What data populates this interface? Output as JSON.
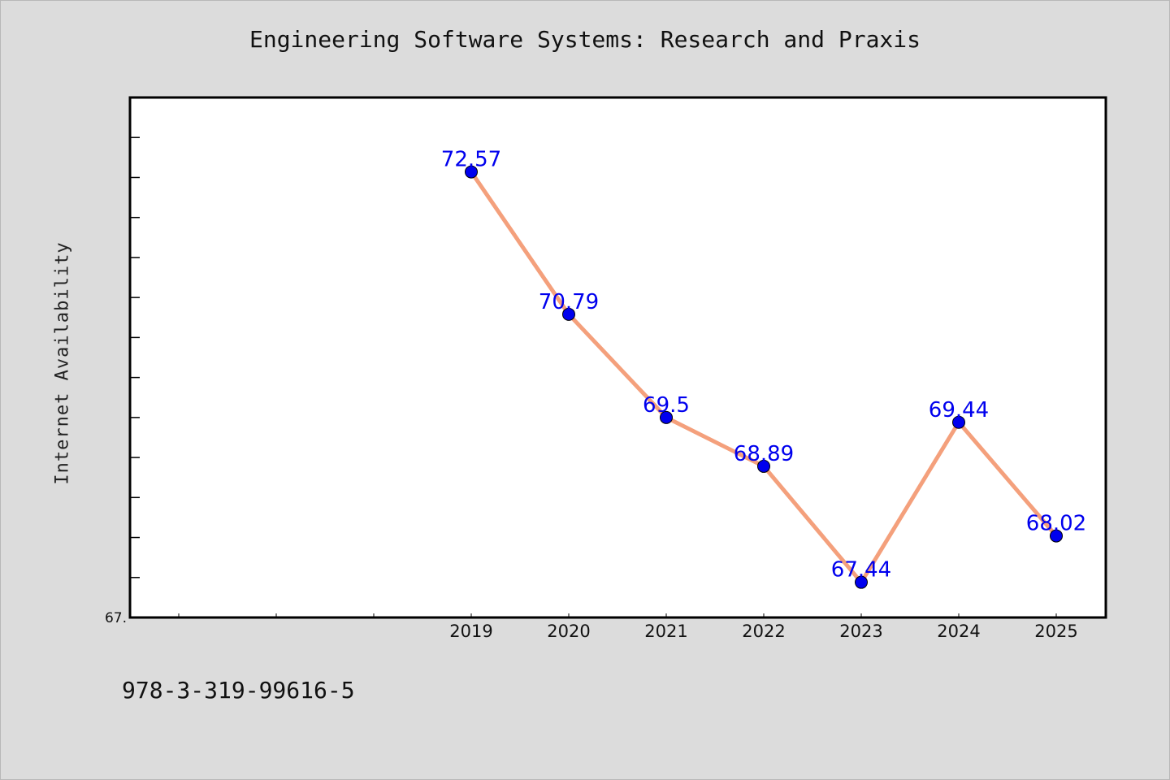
{
  "colors": {
    "background": "#dcdcdc",
    "plot_background": "#ffffff",
    "line": "#f4a07c",
    "marker": "#0000ee",
    "data_label": "#0000ee"
  },
  "footer_text": "978-3-319-99616-5",
  "chart_data": {
    "type": "line",
    "title": "Engineering Software Systems: Research and Praxis",
    "xlabel": "",
    "ylabel": "Internet Availability",
    "categories": [
      "",
      "",
      "",
      "2019",
      "2020",
      "2021",
      "2022",
      "2023",
      "2024",
      "2025"
    ],
    "series": [
      {
        "values": [
          null,
          null,
          null,
          72.57,
          70.79,
          69.5,
          68.89,
          67.44,
          69.44,
          68.02
        ]
      }
    ],
    "data_labels": [
      "",
      "",
      "",
      "72.57",
      "70.79",
      "69.5",
      "68.89",
      "67.44",
      "69.44",
      "68.02"
    ],
    "ylim": [
      67.0,
      73.5
    ],
    "y_tick_labels": [
      "67."
    ],
    "grid": false,
    "legend": "none"
  }
}
